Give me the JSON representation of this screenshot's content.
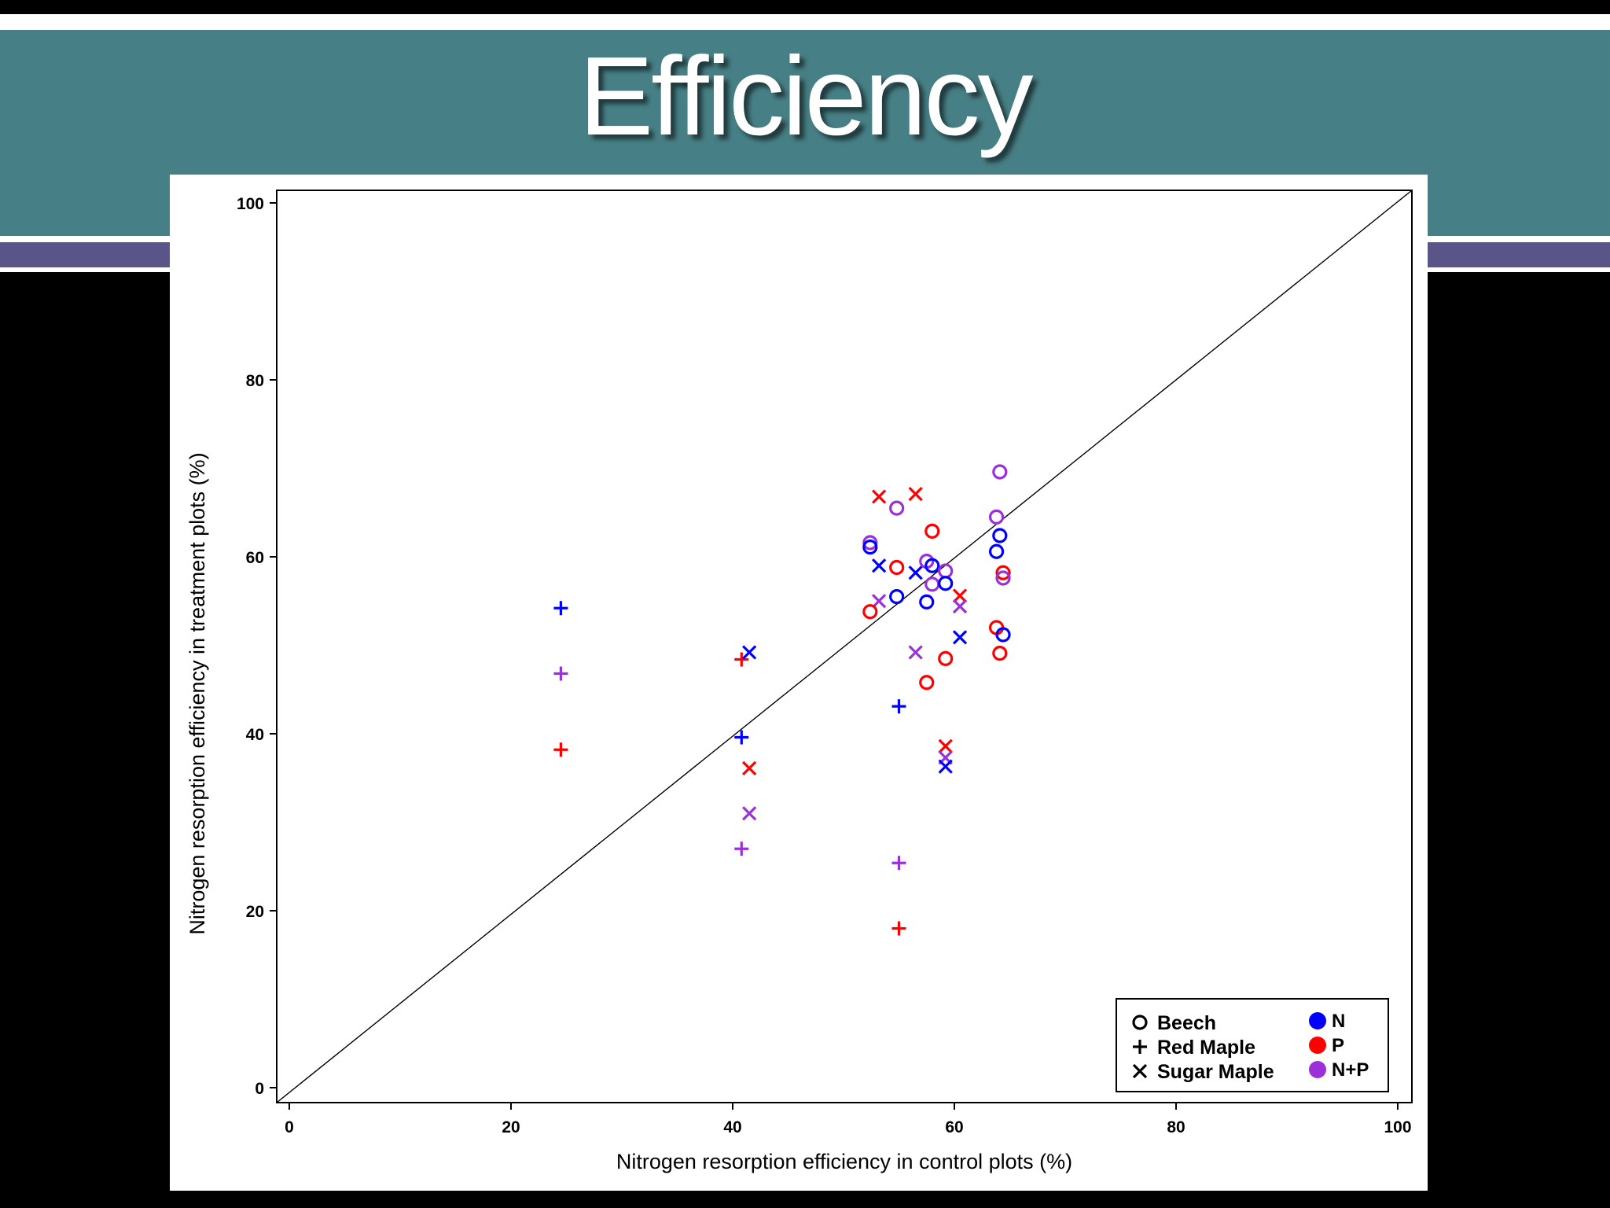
{
  "slide": {
    "title": "Efficiency"
  },
  "colors": {
    "title_band": "#467f85",
    "stripe": "#5a5589",
    "N": "#0000ff",
    "P": "#ff0000",
    "N+P": "#9b30d9"
  },
  "chart_data": {
    "type": "scatter",
    "xlabel": "Nitrogen resorption efficiency in control plots (%)",
    "ylabel": "Nitrogen resorption efficiency in treatment plots (%)",
    "xlim": [
      0,
      100
    ],
    "ylim": [
      0,
      100
    ],
    "xticks": [
      0,
      20,
      40,
      60,
      80,
      100
    ],
    "yticks": [
      0,
      20,
      40,
      60,
      80,
      100
    ],
    "grid": false,
    "reference_line": "1:1",
    "legend_position": "bottom-right",
    "legend": {
      "species": [
        {
          "label": "Beech",
          "marker": "circle"
        },
        {
          "label": "Red Maple",
          "marker": "plus"
        },
        {
          "label": "Sugar Maple",
          "marker": "x"
        }
      ],
      "treatments": [
        {
          "label": "N",
          "color": "#0000ff"
        },
        {
          "label": "P",
          "color": "#ff0000"
        },
        {
          "label": "N+P",
          "color": "#9b30d9"
        }
      ]
    },
    "points": [
      {
        "species": "Red Maple",
        "treatment": "N",
        "x": 24.5,
        "y": 54.2
      },
      {
        "species": "Red Maple",
        "treatment": "N+P",
        "x": 24.5,
        "y": 46.8
      },
      {
        "species": "Red Maple",
        "treatment": "P",
        "x": 24.5,
        "y": 38.2
      },
      {
        "species": "Red Maple",
        "treatment": "P",
        "x": 40.8,
        "y": 48.4
      },
      {
        "species": "Red Maple",
        "treatment": "N",
        "x": 40.8,
        "y": 39.6
      },
      {
        "species": "Red Maple",
        "treatment": "N+P",
        "x": 40.8,
        "y": 27.0
      },
      {
        "species": "Red Maple",
        "treatment": "N",
        "x": 55.0,
        "y": 43.1
      },
      {
        "species": "Red Maple",
        "treatment": "N+P",
        "x": 55.0,
        "y": 25.4
      },
      {
        "species": "Red Maple",
        "treatment": "P",
        "x": 55.0,
        "y": 18.0
      },
      {
        "species": "Sugar Maple",
        "treatment": "N",
        "x": 41.5,
        "y": 49.2
      },
      {
        "species": "Sugar Maple",
        "treatment": "P",
        "x": 41.5,
        "y": 36.1
      },
      {
        "species": "Sugar Maple",
        "treatment": "N+P",
        "x": 41.5,
        "y": 31.0
      },
      {
        "species": "Sugar Maple",
        "treatment": "P",
        "x": 53.2,
        "y": 66.8
      },
      {
        "species": "Sugar Maple",
        "treatment": "N",
        "x": 53.2,
        "y": 59.0
      },
      {
        "species": "Sugar Maple",
        "treatment": "N+P",
        "x": 53.2,
        "y": 55.0
      },
      {
        "species": "Sugar Maple",
        "treatment": "P",
        "x": 56.5,
        "y": 67.1
      },
      {
        "species": "Sugar Maple",
        "treatment": "N",
        "x": 56.5,
        "y": 58.2
      },
      {
        "species": "Sugar Maple",
        "treatment": "N+P",
        "x": 56.5,
        "y": 49.2
      },
      {
        "species": "Sugar Maple",
        "treatment": "P",
        "x": 59.2,
        "y": 38.6
      },
      {
        "species": "Sugar Maple",
        "treatment": "N+P",
        "x": 59.2,
        "y": 37.3
      },
      {
        "species": "Sugar Maple",
        "treatment": "N",
        "x": 59.2,
        "y": 36.3
      },
      {
        "species": "Sugar Maple",
        "treatment": "P",
        "x": 60.5,
        "y": 55.6
      },
      {
        "species": "Sugar Maple",
        "treatment": "N+P",
        "x": 60.5,
        "y": 54.4
      },
      {
        "species": "Sugar Maple",
        "treatment": "N",
        "x": 60.5,
        "y": 50.9
      },
      {
        "species": "Beech",
        "treatment": "N+P",
        "x": 52.4,
        "y": 61.6
      },
      {
        "species": "Beech",
        "treatment": "N",
        "x": 52.4,
        "y": 61.1
      },
      {
        "species": "Beech",
        "treatment": "P",
        "x": 52.4,
        "y": 53.8
      },
      {
        "species": "Beech",
        "treatment": "N+P",
        "x": 54.8,
        "y": 65.5
      },
      {
        "species": "Beech",
        "treatment": "P",
        "x": 54.8,
        "y": 58.8
      },
      {
        "species": "Beech",
        "treatment": "N",
        "x": 54.8,
        "y": 55.5
      },
      {
        "species": "Beech",
        "treatment": "N+P",
        "x": 57.5,
        "y": 59.5
      },
      {
        "species": "Beech",
        "treatment": "N",
        "x": 57.5,
        "y": 54.9
      },
      {
        "species": "Beech",
        "treatment": "P",
        "x": 57.5,
        "y": 45.8
      },
      {
        "species": "Beech",
        "treatment": "P",
        "x": 58.0,
        "y": 62.9
      },
      {
        "species": "Beech",
        "treatment": "N",
        "x": 58.0,
        "y": 59.0
      },
      {
        "species": "Beech",
        "treatment": "N+P",
        "x": 58.0,
        "y": 56.9
      },
      {
        "species": "Beech",
        "treatment": "N+P",
        "x": 59.2,
        "y": 58.4
      },
      {
        "species": "Beech",
        "treatment": "N",
        "x": 59.2,
        "y": 57.0
      },
      {
        "species": "Beech",
        "treatment": "P",
        "x": 59.2,
        "y": 48.5
      },
      {
        "species": "Beech",
        "treatment": "N+P",
        "x": 63.8,
        "y": 64.5
      },
      {
        "species": "Beech",
        "treatment": "N",
        "x": 63.8,
        "y": 60.6
      },
      {
        "species": "Beech",
        "treatment": "P",
        "x": 63.8,
        "y": 52.0
      },
      {
        "species": "Beech",
        "treatment": "N+P",
        "x": 64.1,
        "y": 69.6
      },
      {
        "species": "Beech",
        "treatment": "N",
        "x": 64.1,
        "y": 62.4
      },
      {
        "species": "Beech",
        "treatment": "P",
        "x": 64.1,
        "y": 49.1
      },
      {
        "species": "Beech",
        "treatment": "P",
        "x": 64.4,
        "y": 58.2
      },
      {
        "species": "Beech",
        "treatment": "N+P",
        "x": 64.4,
        "y": 57.6
      },
      {
        "species": "Beech",
        "treatment": "N",
        "x": 64.4,
        "y": 51.2
      }
    ]
  }
}
